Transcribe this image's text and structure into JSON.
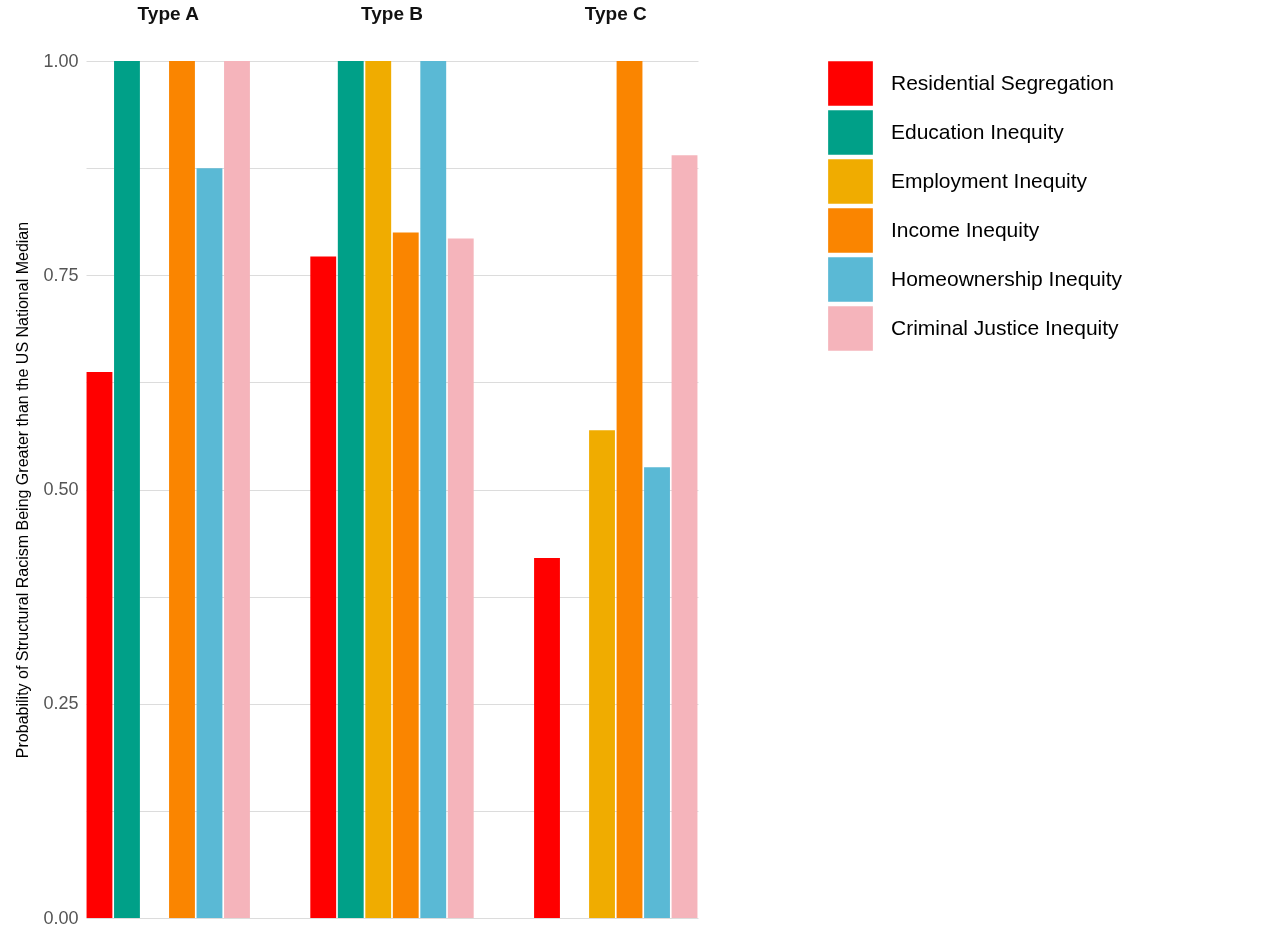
{
  "chart_data": {
    "type": "bar",
    "ylabel": "Probability of Structural Racism Being Greater than the US National Median",
    "categories": [
      "Type A",
      "Type B",
      "Type C"
    ],
    "ylim": [
      0,
      1
    ],
    "yticks": [
      {
        "value": 0,
        "label": "0.00"
      },
      {
        "value": 0.125,
        "label": null
      },
      {
        "value": 0.25,
        "label": "0.25"
      },
      {
        "value": 0.375,
        "label": null
      },
      {
        "value": 0.5,
        "label": "0.50"
      },
      {
        "value": 0.625,
        "label": null
      },
      {
        "value": 0.75,
        "label": "0.75"
      },
      {
        "value": 0.875,
        "label": null
      },
      {
        "value": 1,
        "label": "1.00"
      }
    ],
    "grid": "y",
    "legend": "right",
    "series": [
      {
        "name": "Residential Segregation",
        "color": "#ff0000",
        "values": [
          0.637,
          0.772,
          0.42
        ]
      },
      {
        "name": "Education Inequity",
        "color": "#00a088",
        "values": [
          1.0,
          1.0,
          0
        ]
      },
      {
        "name": "Employment Inequity",
        "color": "#f0ac00",
        "values": [
          0,
          1.0,
          0.569
        ]
      },
      {
        "name": "Income Inequity",
        "color": "#fa8500",
        "values": [
          1.0,
          0.8,
          1.0
        ]
      },
      {
        "name": "Homeownership Inequity",
        "color": "#5ab9d5",
        "values": [
          0.875,
          1.0,
          0.526
        ]
      },
      {
        "name": "Criminal Justice Inequity",
        "color": "#f5b4bb",
        "values": [
          1.0,
          0.793,
          0.89
        ]
      }
    ]
  }
}
